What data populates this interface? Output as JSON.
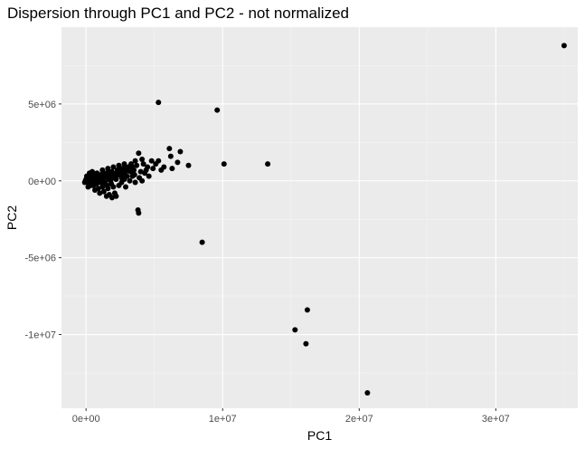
{
  "chart_data": {
    "type": "scatter",
    "title": "Dispersion through PC1 and PC2 - not normalized",
    "xlabel": "PC1",
    "ylabel": "PC2",
    "xlim": [
      -1800000,
      36000000
    ],
    "ylim": [
      -14800000,
      10000000
    ],
    "x_ticks": [
      {
        "value": 0,
        "label": "0e+00"
      },
      {
        "value": 10000000,
        "label": "1e+07"
      },
      {
        "value": 20000000,
        "label": "2e+07"
      },
      {
        "value": 30000000,
        "label": "3e+07"
      }
    ],
    "y_ticks": [
      {
        "value": -10000000,
        "label": "-1e+07"
      },
      {
        "value": -5000000,
        "label": "-5e+06"
      },
      {
        "value": 0,
        "label": "0e+00"
      },
      {
        "value": 5000000,
        "label": "5e+06"
      }
    ],
    "grid": true,
    "background": "#ebebeb",
    "point_color": "#000000",
    "points": [
      {
        "x": 35000000,
        "y": 8800000
      },
      {
        "x": 5300000,
        "y": 5100000
      },
      {
        "x": 9600000,
        "y": 4600000
      },
      {
        "x": 20600000,
        "y": -13800000
      },
      {
        "x": 16200000,
        "y": -8400000
      },
      {
        "x": 15300000,
        "y": -9700000
      },
      {
        "x": 16100000,
        "y": -10600000
      },
      {
        "x": 8500000,
        "y": -4000000
      },
      {
        "x": 13300000,
        "y": 1100000
      },
      {
        "x": 10100000,
        "y": 1100000
      },
      {
        "x": 3800000,
        "y": -1900000
      },
      {
        "x": 3850000,
        "y": -2100000
      },
      {
        "x": 6100000,
        "y": 2100000
      },
      {
        "x": 6900000,
        "y": 1900000
      },
      {
        "x": 6200000,
        "y": 1600000
      },
      {
        "x": 3850000,
        "y": 1800000
      },
      {
        "x": 7500000,
        "y": 1000000
      },
      {
        "x": 6700000,
        "y": 1200000
      },
      {
        "x": 6300000,
        "y": 800000
      },
      {
        "x": 5700000,
        "y": 900000
      },
      {
        "x": 5100000,
        "y": 1100000
      },
      {
        "x": 5500000,
        "y": 700000
      },
      {
        "x": 4800000,
        "y": 1300000
      },
      {
        "x": 4200000,
        "y": 1100000
      },
      {
        "x": 4500000,
        "y": 900000
      },
      {
        "x": 4300000,
        "y": 500000
      },
      {
        "x": 3700000,
        "y": 1000000
      },
      {
        "x": 4000000,
        "y": 600000
      },
      {
        "x": 4600000,
        "y": 300000
      },
      {
        "x": 3300000,
        "y": 1100000
      },
      {
        "x": 3500000,
        "y": 700000
      },
      {
        "x": 3400000,
        "y": 300000
      },
      {
        "x": 3900000,
        "y": 200000
      },
      {
        "x": 3100000,
        "y": 900000
      },
      {
        "x": 2900000,
        "y": 600000
      },
      {
        "x": 3000000,
        "y": 300000
      },
      {
        "x": 3200000,
        "y": 0
      },
      {
        "x": 2700000,
        "y": 800000
      },
      {
        "x": 2500000,
        "y": 500000
      },
      {
        "x": 2800000,
        "y": 100000
      },
      {
        "x": 2600000,
        "y": -100000
      },
      {
        "x": 2300000,
        "y": 700000
      },
      {
        "x": 2100000,
        "y": 400000
      },
      {
        "x": 2200000,
        "y": 100000
      },
      {
        "x": 2400000,
        "y": -300000
      },
      {
        "x": 1900000,
        "y": 600000
      },
      {
        "x": 1700000,
        "y": 300000
      },
      {
        "x": 1800000,
        "y": 0
      },
      {
        "x": 2000000,
        "y": -400000
      },
      {
        "x": 2100000,
        "y": -800000
      },
      {
        "x": 1500000,
        "y": 500000
      },
      {
        "x": 1300000,
        "y": 200000
      },
      {
        "x": 1400000,
        "y": -100000
      },
      {
        "x": 1600000,
        "y": -500000
      },
      {
        "x": 1700000,
        "y": -900000
      },
      {
        "x": 2200000,
        "y": -1000000
      },
      {
        "x": 1900000,
        "y": -1100000
      },
      {
        "x": 1500000,
        "y": -1000000
      },
      {
        "x": 1100000,
        "y": 400000
      },
      {
        "x": 900000,
        "y": 200000
      },
      {
        "x": 1000000,
        "y": -100000
      },
      {
        "x": 1200000,
        "y": -400000
      },
      {
        "x": 1300000,
        "y": -700000
      },
      {
        "x": 800000,
        "y": 500000
      },
      {
        "x": 700000,
        "y": 200000
      },
      {
        "x": 750000,
        "y": -200000
      },
      {
        "x": 900000,
        "y": -500000
      },
      {
        "x": 1000000,
        "y": -800000
      },
      {
        "x": 600000,
        "y": 400000
      },
      {
        "x": 500000,
        "y": 100000
      },
      {
        "x": 550000,
        "y": -300000
      },
      {
        "x": 650000,
        "y": -600000
      },
      {
        "x": 400000,
        "y": 300000
      },
      {
        "x": 300000,
        "y": 0
      },
      {
        "x": 350000,
        "y": -300000
      },
      {
        "x": 200000,
        "y": 200000
      },
      {
        "x": 100000,
        "y": -100000
      },
      {
        "x": 150000,
        "y": -400000
      },
      {
        "x": 0,
        "y": 100000
      },
      {
        "x": -100000,
        "y": -100000
      },
      {
        "x": 50000,
        "y": 300000
      },
      {
        "x": 450000,
        "y": 600000
      },
      {
        "x": 250000,
        "y": 500000
      },
      {
        "x": 1200000,
        "y": 700000
      },
      {
        "x": 1600000,
        "y": 800000
      },
      {
        "x": 2000000,
        "y": 900000
      },
      {
        "x": 2400000,
        "y": 1000000
      },
      {
        "x": 2800000,
        "y": 1100000
      },
      {
        "x": 3600000,
        "y": 1300000
      },
      {
        "x": 4100000,
        "y": 1400000
      },
      {
        "x": 5300000,
        "y": 1300000
      },
      {
        "x": 2600000,
        "y": 200000
      },
      {
        "x": 3600000,
        "y": -100000
      },
      {
        "x": 4100000,
        "y": 0
      },
      {
        "x": 2900000,
        "y": -400000
      },
      {
        "x": 850000,
        "y": 0
      },
      {
        "x": 1150000,
        "y": 100000
      },
      {
        "x": 1450000,
        "y": 300000
      },
      {
        "x": 1750000,
        "y": 500000
      },
      {
        "x": 2050000,
        "y": 200000
      },
      {
        "x": 2350000,
        "y": 400000
      },
      {
        "x": 2650000,
        "y": 600000
      },
      {
        "x": 2950000,
        "y": 800000
      },
      {
        "x": 3250000,
        "y": 600000
      },
      {
        "x": 3550000,
        "y": 400000
      },
      {
        "x": 4400000,
        "y": 700000
      },
      {
        "x": 4900000,
        "y": 800000
      },
      {
        "x": 1250000,
        "y": -200000
      },
      {
        "x": 1550000,
        "y": -300000
      },
      {
        "x": 1850000,
        "y": -200000
      },
      {
        "x": 450000,
        "y": -100000
      },
      {
        "x": 650000,
        "y": 0
      },
      {
        "x": 250000,
        "y": 100000
      },
      {
        "x": -50000,
        "y": 0
      },
      {
        "x": 100000,
        "y": 200000
      },
      {
        "x": 1050000,
        "y": 300000
      },
      {
        "x": 1350000,
        "y": 400000
      },
      {
        "x": 1650000,
        "y": 100000
      },
      {
        "x": 1950000,
        "y": 300000
      },
      {
        "x": 2250000,
        "y": 500000
      },
      {
        "x": 2550000,
        "y": 800000
      },
      {
        "x": 2750000,
        "y": 400000
      },
      {
        "x": 3050000,
        "y": 700000
      },
      {
        "x": 3350000,
        "y": 900000
      }
    ]
  }
}
